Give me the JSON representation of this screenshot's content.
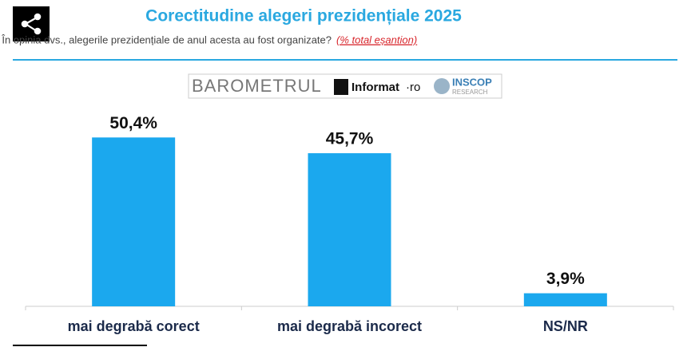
{
  "chart_data": {
    "type": "bar",
    "title": "Corectitudine alegeri prezidențiale 2025",
    "subtitle": "În opinia dvs., alegerile prezidențiale de anul acesta au fost organizate?",
    "subtitle_note": "(% total eșantion)",
    "branding": [
      "BAROMETRUL",
      "Informat",
      "·ro",
      "INSCOP",
      "RESEARCH"
    ],
    "categories": [
      "mai degrabă corect",
      "mai degrabă incorect",
      "NS/NR"
    ],
    "values": [
      50.4,
      45.7,
      3.9
    ],
    "value_labels": [
      "50,4%",
      "45,7%",
      "3,9%"
    ],
    "color": "#1ba8ee"
  }
}
